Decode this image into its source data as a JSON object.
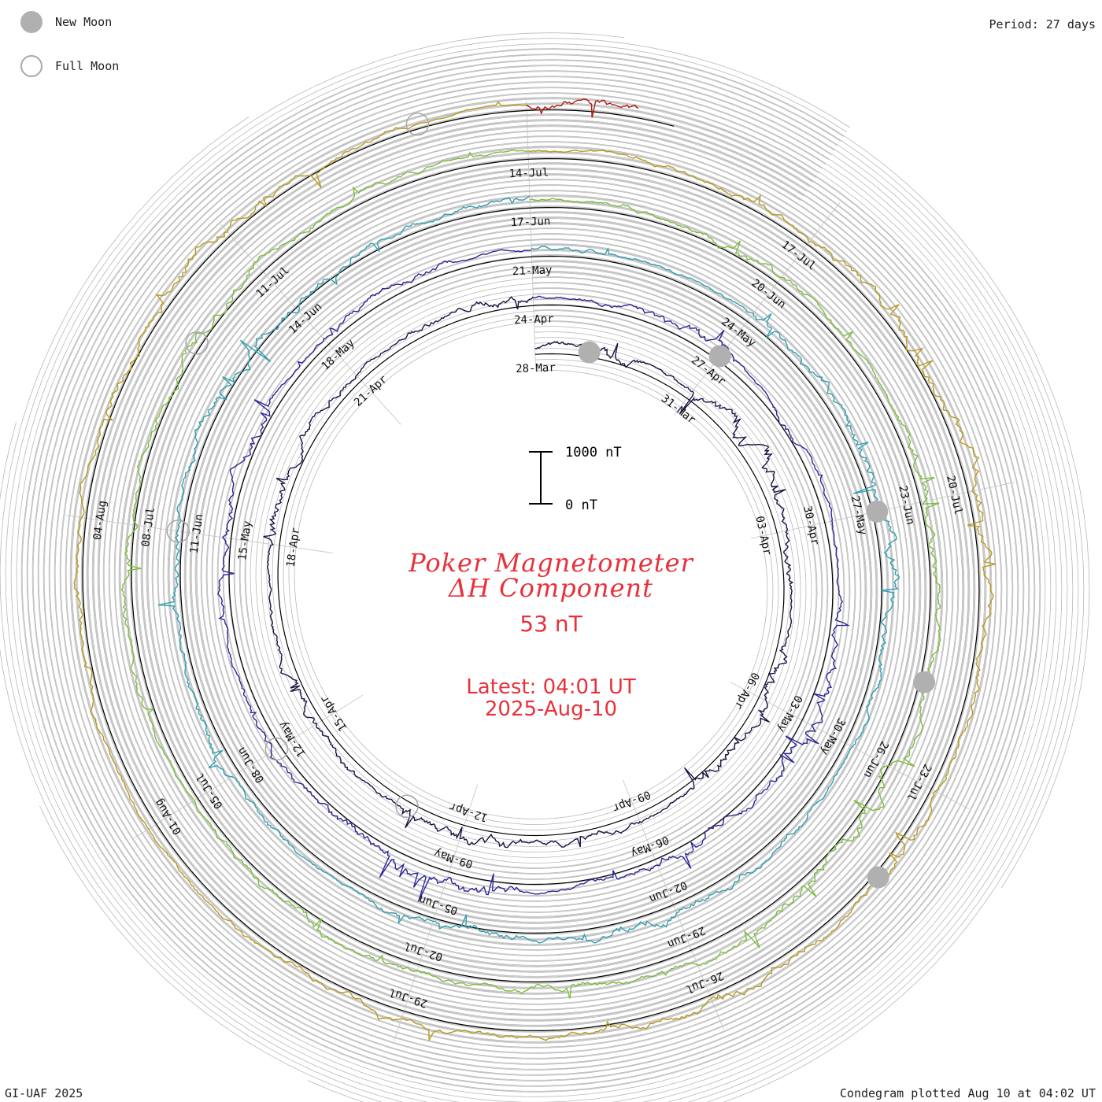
{
  "legend": {
    "new_moon_label": "New Moon",
    "full_moon_label": "Full Moon"
  },
  "period_label": "Period: 27 days",
  "footer": {
    "left": "GI-UAF 2025",
    "right": "Condegram plotted Aug 10 at 04:02 UT"
  },
  "title": {
    "line1": "Poker Magnetometer",
    "line2": "ΔH Component",
    "value": "53 nT",
    "latest_line1": "Latest: 04:01 UT",
    "latest_line2": "2025-Aug-10"
  },
  "chart_data": {
    "type": "line",
    "title": "Poker Magnetometer ΔH Component",
    "period_days": 27,
    "scale_bar": {
      "low_label": "0 nT",
      "high_label": "1000 nT",
      "low": 0,
      "high": 1000
    },
    "current_value_nT": 53,
    "start_date": "28-Mar",
    "end_date": "10-Aug",
    "colors": {
      "new_moon": "#b0b0b0",
      "full_moon_stroke": "#a8a8a8",
      "grid": "#b8b8b8",
      "baseline": "#000000",
      "text": "#e8313a",
      "series": [
        "#1a1142",
        "#2b2596",
        "#2f9fb0",
        "#7cbd3c",
        "#b89a1e",
        "#b0170f"
      ]
    },
    "rings": [
      {
        "labels": [
          "28-Mar",
          "31-Mar",
          "03-Apr",
          "06-Apr",
          "09-Apr",
          "12-Apr",
          "15-Apr",
          "18-Apr",
          "21-Apr"
        ]
      },
      {
        "labels": [
          "24-Apr",
          "27-Apr",
          "30-Apr",
          "03-May",
          "06-May",
          "09-May",
          "12-May",
          "15-May",
          "18-May"
        ]
      },
      {
        "labels": [
          "21-May",
          "24-May",
          "27-May",
          "30-May",
          "02-Jun",
          "05-Jun",
          "08-Jun",
          "11-Jun",
          "14-Jun"
        ]
      },
      {
        "labels": [
          "17-Jun",
          "20-Jun",
          "23-Jun",
          "26-Jun",
          "29-Jun",
          "02-Jul",
          "05-Jul",
          "08-Jul",
          "11-Jul"
        ]
      },
      {
        "labels": [
          "14-Jul",
          "17-Jul",
          "20-Jul",
          "23-Jul",
          "26-Jul",
          "29-Jul",
          "01-Aug",
          "04-Aug"
        ]
      }
    ],
    "new_moons": [
      "29-Mar",
      "27-Apr",
      "27-May",
      "25-Jun",
      "24-Jul"
    ],
    "full_moons": [
      "13-Apr",
      "12-May",
      "11-Jun",
      "10-Jul",
      "09-Aug"
    ],
    "series": [
      {
        "days": [
          0,
          27
        ],
        "color": "#1a1142",
        "activity": [
          2,
          3,
          1,
          4,
          5,
          2,
          3,
          1,
          4,
          2,
          3,
          1,
          2,
          2,
          4,
          3,
          1,
          2,
          3,
          2,
          1,
          4,
          3,
          2,
          1,
          2,
          3
        ]
      },
      {
        "days": [
          27,
          54
        ],
        "color": "#2b2596",
        "activity": [
          1,
          2,
          3,
          1,
          2,
          1,
          1,
          2,
          3,
          4,
          2,
          3,
          2,
          1,
          4,
          5,
          3,
          2,
          2,
          1,
          2,
          3,
          3,
          1,
          2,
          2,
          1
        ]
      },
      {
        "days": [
          54,
          81
        ],
        "color": "#2f9fb0",
        "activity": [
          2,
          1,
          1,
          2,
          3,
          4,
          5,
          3,
          2,
          1,
          2,
          3,
          4,
          2,
          3,
          2,
          1,
          2,
          3,
          2,
          3,
          2,
          3,
          4,
          3,
          2,
          2
        ]
      },
      {
        "days": [
          81,
          108
        ],
        "color": "#7cbd3c",
        "activity": [
          1,
          2,
          3,
          2,
          1,
          3,
          4,
          2,
          3,
          5,
          4,
          3,
          2,
          3,
          2,
          2,
          3,
          2,
          1,
          2,
          3,
          2,
          3,
          4,
          2,
          2,
          1
        ]
      },
      {
        "days": [
          108,
          135
        ],
        "color": "#b89a1e",
        "activity": [
          1,
          2,
          2,
          3,
          4,
          5,
          4,
          3,
          2,
          3,
          2,
          4,
          3,
          2,
          2,
          3,
          2,
          1,
          1,
          2,
          3,
          2,
          3,
          4,
          3,
          2,
          1
        ]
      },
      {
        "days": [
          135,
          136
        ],
        "color": "#b0170f",
        "activity": [
          3,
          4,
          3,
          2
        ]
      }
    ]
  }
}
